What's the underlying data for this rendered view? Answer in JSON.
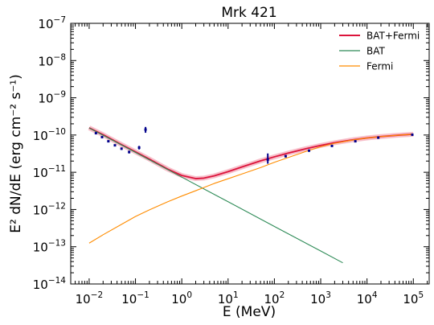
{
  "chart_data": {
    "type": "line",
    "title": "Mrk 421",
    "xlabel": "E (MeV)",
    "ylabel": "E² dN/dE (erg cm⁻² s⁻¹)",
    "xscale": "log",
    "yscale": "log",
    "xlim": [
      0.004,
      220000
    ],
    "ylim": [
      1e-14,
      1e-07
    ],
    "x_ticks": [
      {
        "base": "10",
        "exp": "−2",
        "value": 0.01
      },
      {
        "base": "10",
        "exp": "−1",
        "value": 0.1
      },
      {
        "base": "10",
        "exp": "0",
        "value": 1
      },
      {
        "base": "10",
        "exp": "1",
        "value": 10
      },
      {
        "base": "10",
        "exp": "2",
        "value": 100
      },
      {
        "base": "10",
        "exp": "3",
        "value": 1000
      },
      {
        "base": "10",
        "exp": "4",
        "value": 10000
      },
      {
        "base": "10",
        "exp": "5",
        "value": 100000
      }
    ],
    "y_ticks": [
      {
        "base": "10",
        "exp": "−14",
        "value": 1e-14
      },
      {
        "base": "10",
        "exp": "−13",
        "value": 1e-13
      },
      {
        "base": "10",
        "exp": "−12",
        "value": 1e-12
      },
      {
        "base": "10",
        "exp": "−11",
        "value": 1e-11
      },
      {
        "base": "10",
        "exp": "−10",
        "value": 1e-10
      },
      {
        "base": "10",
        "exp": "−9",
        "value": 1e-09
      },
      {
        "base": "10",
        "exp": "−8",
        "value": 1e-08
      },
      {
        "base": "10",
        "exp": "−7",
        "value": 1e-07
      }
    ],
    "grid": false,
    "legend_position": "top-right",
    "series": [
      {
        "name": "BAT+Fermi",
        "color": "#dc143c",
        "role": "sum",
        "x": [
          0.01,
          0.02,
          0.05,
          0.1,
          0.2,
          0.5,
          1,
          2,
          3,
          5,
          10,
          20,
          50,
          100,
          200,
          500,
          1000,
          2000,
          5000,
          10000,
          20000,
          50000,
          100000
        ],
        "y": [
          1.56e-10,
          1.02e-10,
          5.53e-11,
          3.55e-11,
          2.26e-11,
          1.21e-11,
          8.2e-12,
          6.75e-12,
          6.96e-12,
          8e-12,
          1.04e-11,
          1.39e-11,
          2.02e-11,
          2.6e-11,
          3.28e-11,
          4.35e-11,
          5.26e-11,
          6.21e-11,
          7.46e-11,
          8.33e-11,
          9.11e-11,
          9.96e-11,
          1.05e-10
        ]
      },
      {
        "name": "BAT",
        "color": "#2e8b57",
        "role": "component",
        "x": [
          0.01,
          0.1,
          1,
          10,
          100,
          1000,
          3000
        ],
        "y": [
          1.55e-10,
          3.4e-11,
          7.4e-12,
          1.62e-12,
          3.5e-13,
          7.7e-14,
          3.7e-14
        ]
      },
      {
        "name": "Fermi",
        "color": "#ff8c00",
        "role": "component",
        "x": [
          0.01,
          0.02,
          0.05,
          0.1,
          0.2,
          0.5,
          1,
          2,
          5,
          10,
          20,
          50,
          100,
          200,
          500,
          1000,
          2000,
          5000,
          10000,
          20000,
          50000,
          100000
        ],
        "y": [
          1.25e-13,
          2.1e-13,
          4e-13,
          6.5e-13,
          9.8e-13,
          1.62e-12,
          2.3e-12,
          3.2e-12,
          5e-12,
          6.7e-12,
          9e-12,
          1.33e-11,
          1.85e-11,
          2.5e-11,
          3.7e-11,
          4.85e-11,
          6e-11,
          7.4e-11,
          8.3e-11,
          9.1e-11,
          9.95e-11,
          1.05e-10
        ]
      }
    ],
    "data_points": [
      {
        "x": 0.014,
        "y": 1.12e-10,
        "ylo": 1.05e-10,
        "yhi": 1.2e-10
      },
      {
        "x": 0.019,
        "y": 8.8e-11,
        "ylo": 8.3e-11,
        "yhi": 9.3e-11
      },
      {
        "x": 0.026,
        "y": 6.8e-11,
        "ylo": 6.4e-11,
        "yhi": 7.2e-11
      },
      {
        "x": 0.036,
        "y": 5.3e-11,
        "ylo": 5e-11,
        "yhi": 5.6e-11
      },
      {
        "x": 0.05,
        "y": 4.3e-11,
        "ylo": 4e-11,
        "yhi": 4.6e-11
      },
      {
        "x": 0.073,
        "y": 3.5e-11,
        "ylo": 3.2e-11,
        "yhi": 3.8e-11
      },
      {
        "x": 0.12,
        "y": 4.6e-11,
        "ylo": 4.1e-11,
        "yhi": 5.1e-11
      },
      {
        "x": 0.165,
        "y": 1.4e-10,
        "ylo": 1.15e-10,
        "yhi": 1.65e-10
      },
      {
        "x": 72,
        "y": 2.2e-11,
        "ylo": 1.7e-11,
        "yhi": 3.2e-11
      },
      {
        "x": 175,
        "y": 2.7e-11,
        "ylo": 2.5e-11,
        "yhi": 2.9e-11
      },
      {
        "x": 560,
        "y": 3.8e-11,
        "ylo": 3.6e-11,
        "yhi": 4e-11
      },
      {
        "x": 1750,
        "y": 5.1e-11,
        "ylo": 4.9e-11,
        "yhi": 5.3e-11
      },
      {
        "x": 5600,
        "y": 6.8e-11,
        "ylo": 6.5e-11,
        "yhi": 7.1e-11
      },
      {
        "x": 17500,
        "y": 8.5e-11,
        "ylo": 8.2e-11,
        "yhi": 8.8e-11
      },
      {
        "x": 95000,
        "y": 1.02e-10,
        "ylo": 9.8e-11,
        "yhi": 1.06e-10
      }
    ],
    "colors": {
      "sum": "#dc143c",
      "band": "#f4a5b5",
      "bat": "#2e8b57",
      "fermi": "#ff8c00",
      "points": "#00008b"
    }
  }
}
